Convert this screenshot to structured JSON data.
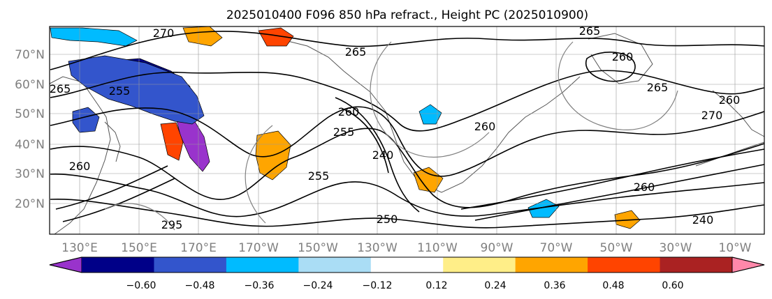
{
  "title": "2025010400 F096 850 hPa refract., Height PC (2025010900)",
  "y_axis_labels": [
    "70°N",
    "60°N",
    "50°N",
    "40°N",
    "30°N",
    "20°N"
  ],
  "x_axis_labels": [
    "130°E",
    "150°E",
    "170°E",
    "170°W",
    "150°W",
    "130°W",
    "110°W",
    "90°W",
    "70°W",
    "50°W",
    "30°W",
    "10°W"
  ],
  "colorbar": {
    "colors": [
      "#9933cc",
      "#000088",
      "#3355cc",
      "#00bbff",
      "#aaddf5",
      "#ffffff",
      "#ffee88",
      "#ffa500",
      "#ff4400",
      "#aa2222",
      "#ff88aa"
    ],
    "tick_labels": [
      "−0.60",
      "−0.48",
      "−0.36",
      "−0.24",
      "−0.12",
      "0.12",
      "0.24",
      "0.36",
      "0.48",
      "0.60"
    ]
  },
  "contour_labels": [
    "270",
    "265",
    "265",
    "260",
    "265",
    "255",
    "265",
    "260",
    "260",
    "270",
    "255",
    "240",
    "260",
    "255",
    "260",
    "260",
    "295",
    "240",
    "250"
  ],
  "map_colors": {
    "land_outline": "#555555",
    "grid": "#999999",
    "contour": "#000000"
  }
}
